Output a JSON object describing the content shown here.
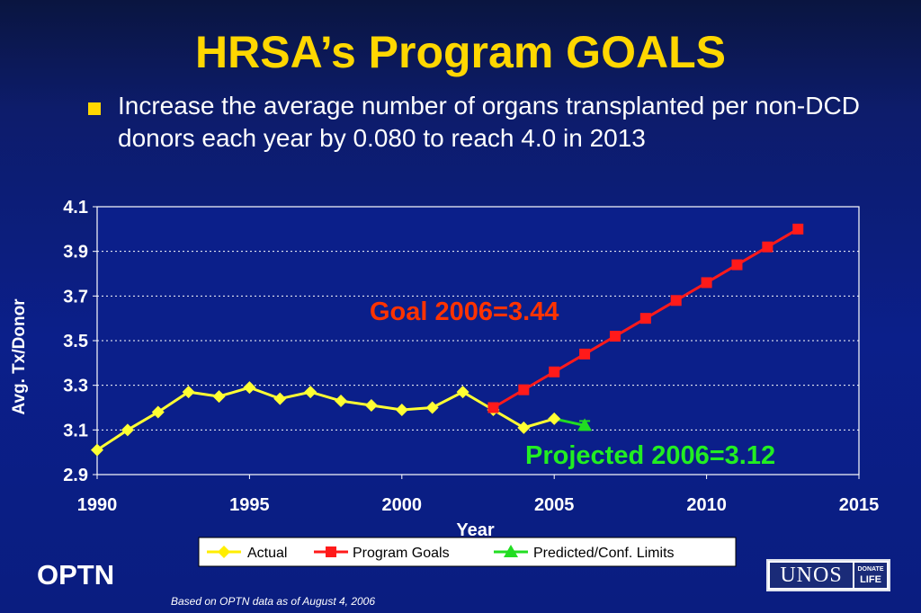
{
  "slide": {
    "title": "HRSA’s Program GOALS",
    "bullet": "Increase the average number of organs transplanted per non-DCD donors each year by 0.080 to reach 4.0 in 2013",
    "footer_org": "OPTN",
    "footnote": "Based on OPTN data as of August 4, 2006",
    "logo_main": "UNOS",
    "logo_badge_line1": "DONATE",
    "logo_badge_line2": "LIFE"
  },
  "colors": {
    "title": "#ffd700",
    "actual": "#ffff33",
    "goals": "#ff1a1a",
    "predicted": "#22dd22",
    "goal_annotation": "#ff3300",
    "projected_annotation": "#22ee22"
  },
  "chart_data": {
    "type": "line",
    "xlabel": "Year",
    "ylabel": "Avg. Tx/Donor",
    "xlim": [
      1990,
      2015
    ],
    "ylim": [
      2.9,
      4.1
    ],
    "xticks": [
      "1990",
      "1995",
      "2000",
      "2005",
      "2010",
      "2015"
    ],
    "yticks": [
      "2.9",
      "3.1",
      "3.3",
      "3.5",
      "3.7",
      "3.9",
      "4.1"
    ],
    "grid": "horizontal dashed",
    "legend_position": "bottom",
    "series": [
      {
        "name": "Actual",
        "marker": "diamond",
        "x": [
          1990,
          1991,
          1992,
          1993,
          1994,
          1995,
          1996,
          1997,
          1998,
          1999,
          2000,
          2001,
          2002,
          2003,
          2004,
          2005
        ],
        "y": [
          3.01,
          3.1,
          3.18,
          3.27,
          3.25,
          3.29,
          3.24,
          3.27,
          3.23,
          3.21,
          3.19,
          3.2,
          3.27,
          3.19,
          3.11,
          3.15
        ]
      },
      {
        "name": "Program Goals",
        "marker": "square",
        "x": [
          2003,
          2004,
          2005,
          2006,
          2007,
          2008,
          2009,
          2010,
          2011,
          2012,
          2013
        ],
        "y": [
          3.2,
          3.28,
          3.36,
          3.44,
          3.52,
          3.6,
          3.68,
          3.76,
          3.84,
          3.92,
          4.0
        ]
      },
      {
        "name": "Predicted/Conf. Limits",
        "marker": "triangle",
        "x": [
          2005,
          2006
        ],
        "y": [
          3.15,
          3.12
        ],
        "error": {
          "x": 2006,
          "low": 3.1,
          "high": 3.14
        }
      }
    ],
    "annotations": [
      {
        "text": "Goal 2006=3.44",
        "color_key": "goal_annotation"
      },
      {
        "text": "Projected 2006=3.12",
        "color_key": "projected_annotation"
      }
    ]
  }
}
